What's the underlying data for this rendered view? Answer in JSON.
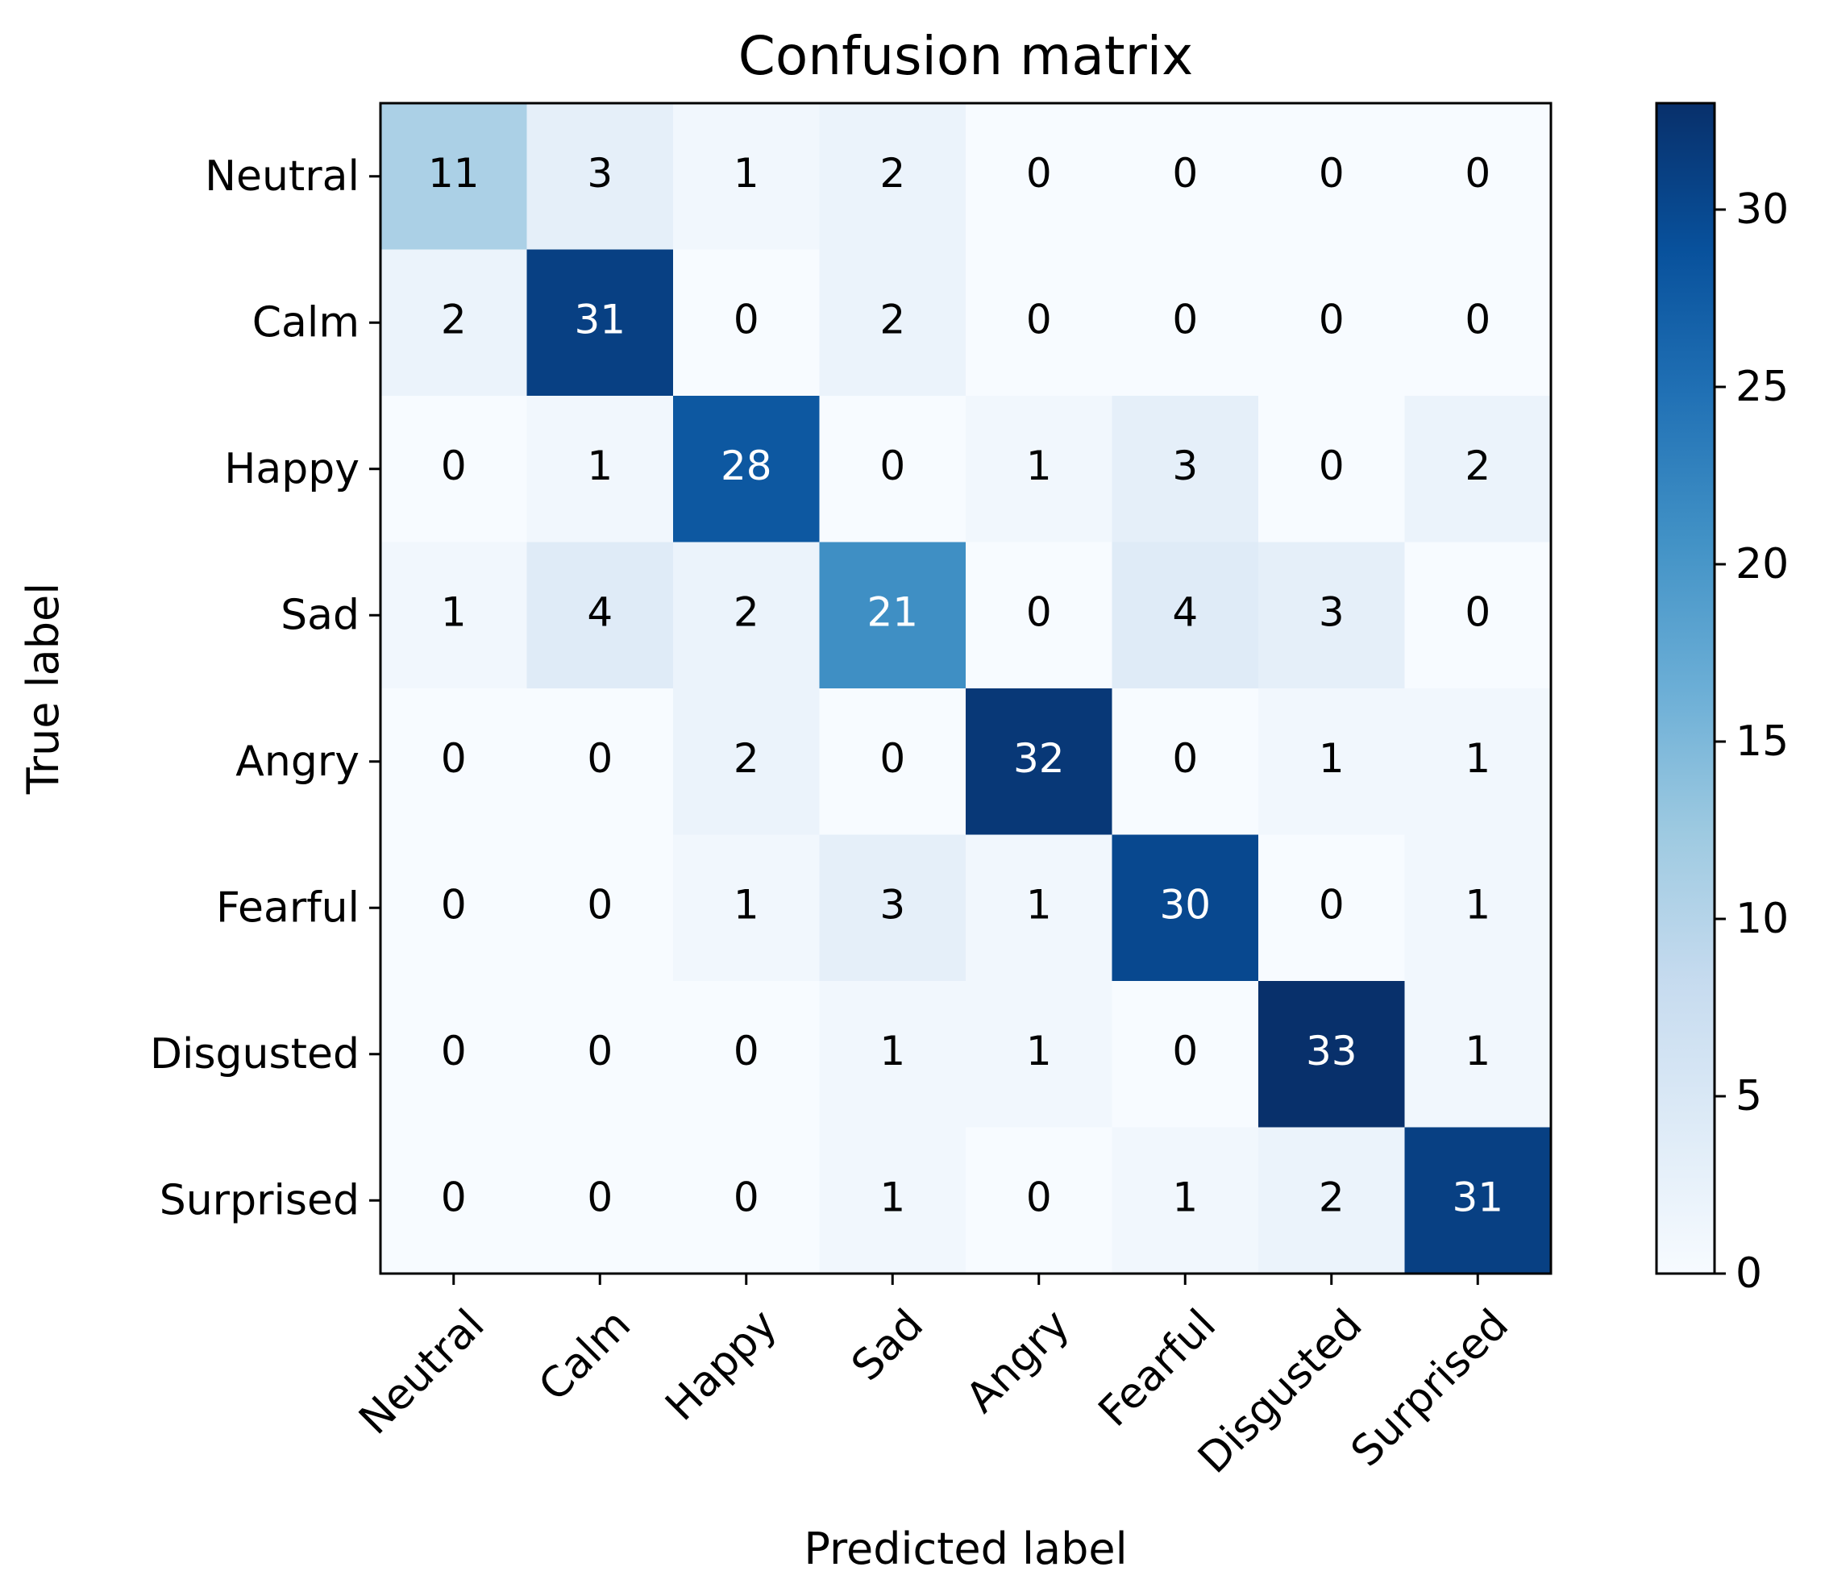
{
  "chart_data": {
    "type": "heatmap",
    "title": "Confusion matrix",
    "xlabel": "Predicted label",
    "ylabel": "True label",
    "x_categories": [
      "Neutral",
      "Calm",
      "Happy",
      "Sad",
      "Angry",
      "Fearful",
      "Disgusted",
      "Surprised"
    ],
    "y_categories": [
      "Neutral",
      "Calm",
      "Happy",
      "Sad",
      "Angry",
      "Fearful",
      "Disgusted",
      "Surprised"
    ],
    "matrix": [
      [
        11,
        3,
        1,
        2,
        0,
        0,
        0,
        0
      ],
      [
        2,
        31,
        0,
        2,
        0,
        0,
        0,
        0
      ],
      [
        0,
        1,
        28,
        0,
        1,
        3,
        0,
        2
      ],
      [
        1,
        4,
        2,
        21,
        0,
        4,
        3,
        0
      ],
      [
        0,
        0,
        2,
        0,
        32,
        0,
        1,
        1
      ],
      [
        0,
        0,
        1,
        3,
        1,
        30,
        0,
        1
      ],
      [
        0,
        0,
        0,
        1,
        1,
        0,
        33,
        1
      ],
      [
        0,
        0,
        0,
        1,
        0,
        1,
        2,
        31
      ]
    ],
    "colormap": "Blues",
    "colorbar": {
      "range": [
        0,
        33
      ],
      "ticks": [
        0,
        5,
        10,
        15,
        20,
        25,
        30
      ]
    }
  }
}
